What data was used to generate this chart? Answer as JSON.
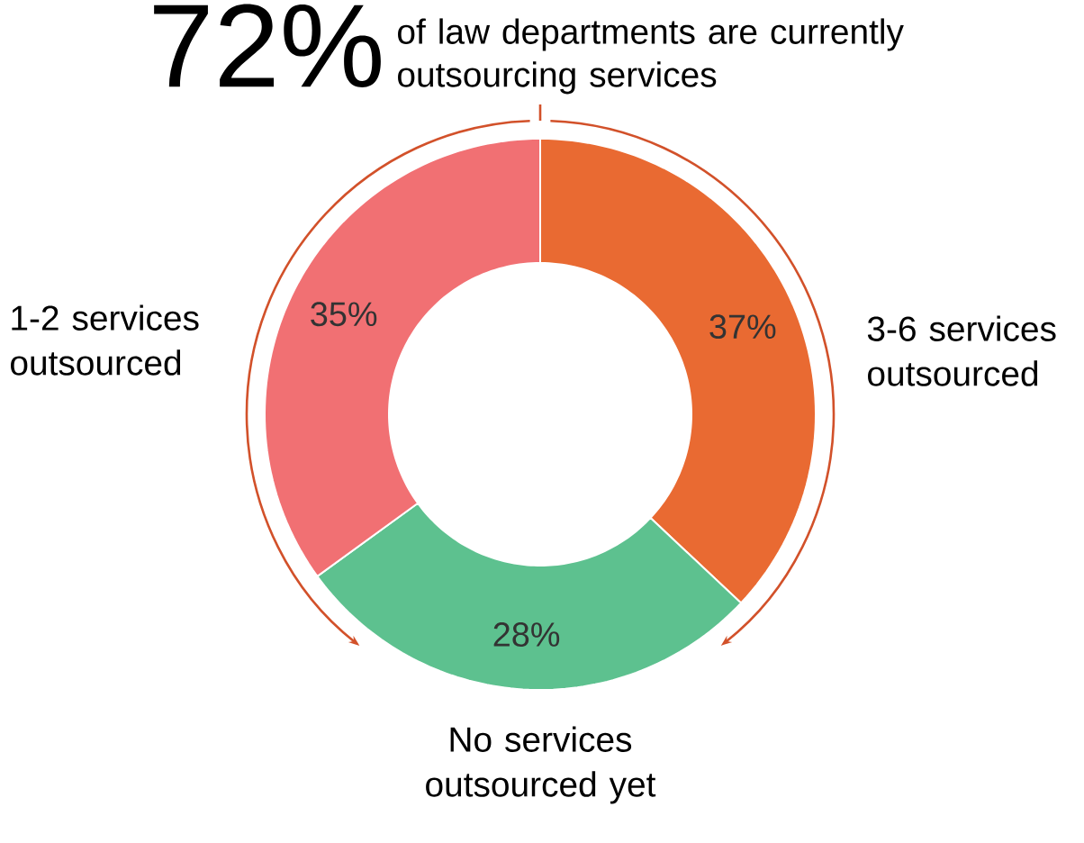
{
  "chart_data": {
    "type": "donut",
    "title": "72%",
    "subtitle": "of law departments are currently outsourcing services",
    "categories": [
      "3-6 services outsourced",
      "No services outsourced yet",
      "1-2 services outsourced"
    ],
    "values": [
      37,
      28,
      35
    ],
    "colors": [
      "#e96a32",
      "#5dc18f",
      "#f17073"
    ],
    "value_labels": [
      "37%",
      "28%",
      "35%"
    ]
  }
}
